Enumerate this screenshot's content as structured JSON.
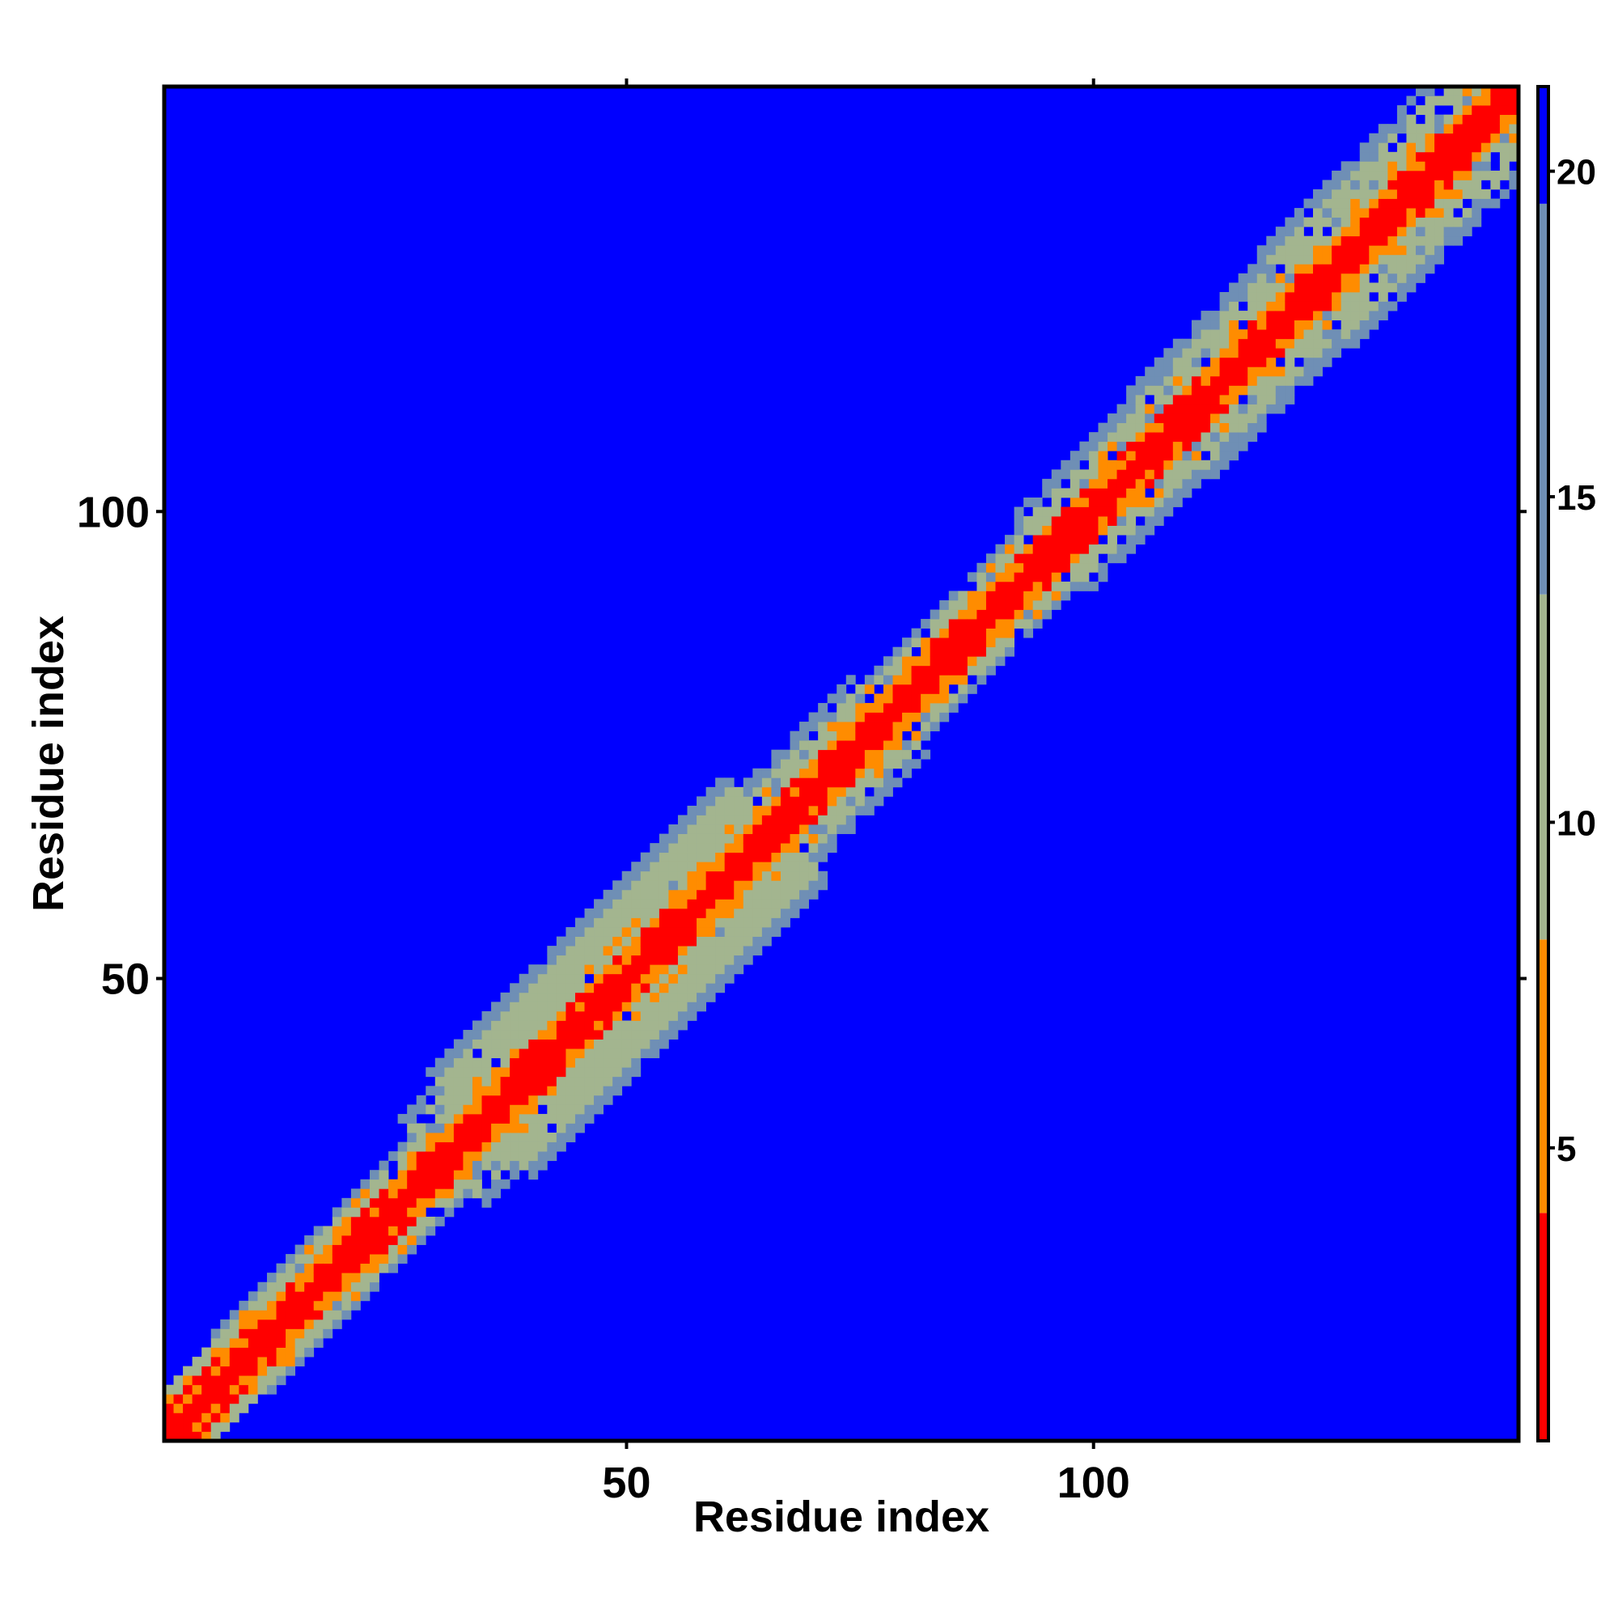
{
  "chart_data": {
    "type": "heatmap",
    "title": "",
    "xlabel": "Residue index",
    "ylabel": "Residue index",
    "n_residues": 145,
    "xlim": [
      1,
      145
    ],
    "ylim": [
      1,
      145
    ],
    "x_ticks": [
      50,
      100
    ],
    "y_ticks": [
      50,
      100
    ],
    "x_tick_labels": [
      "50",
      "100"
    ],
    "y_tick_labels": [
      "50",
      "100"
    ],
    "grid": false,
    "value_description": "distance map symmetric about the main diagonal (0 on diagonal, saturating at max)",
    "colorbar": {
      "ticks": [
        5,
        10,
        15,
        20
      ],
      "tick_labels": [
        "5",
        "10",
        "15",
        "20"
      ],
      "range": [
        0.5,
        21.3
      ],
      "placement": "right",
      "segments": [
        {
          "from": 0.5,
          "to": 4.0,
          "color": "#ff0000"
        },
        {
          "from": 4.0,
          "to": 8.2,
          "color": "#ff8c00"
        },
        {
          "from": 8.2,
          "to": 13.5,
          "color": "#a3b58f"
        },
        {
          "from": 13.5,
          "to": 19.5,
          "color": "#6f8fb5"
        },
        {
          "from": 19.5,
          "to": 21.3,
          "color": "#0000ff"
        }
      ]
    },
    "band_regions": [
      {
        "from": 1,
        "to": 8,
        "halfwidth": 5,
        "speckle": 0.3
      },
      {
        "from": 8,
        "to": 30,
        "halfwidth": 6,
        "speckle": 0.3
      },
      {
        "from": 20,
        "to": 34,
        "halfwidth": 9,
        "speckle": 0.45
      },
      {
        "from": 30,
        "to": 66,
        "halfwidth": 11,
        "speckle": 0.05
      },
      {
        "from": 66,
        "to": 78,
        "halfwidth": 8,
        "speckle": 0.45
      },
      {
        "from": 78,
        "to": 95,
        "halfwidth": 6,
        "speckle": 0.3
      },
      {
        "from": 95,
        "to": 108,
        "halfwidth": 8,
        "speckle": 0.45
      },
      {
        "from": 108,
        "to": 122,
        "halfwidth": 9,
        "speckle": 0.45
      },
      {
        "from": 122,
        "to": 145,
        "halfwidth": 10,
        "speckle": 0.5
      }
    ],
    "colors": {
      "background": "#0000ff",
      "near": "#ff0000",
      "close": "#ff8c00",
      "mid": "#a3b58f",
      "far": "#6f8fb5"
    }
  }
}
